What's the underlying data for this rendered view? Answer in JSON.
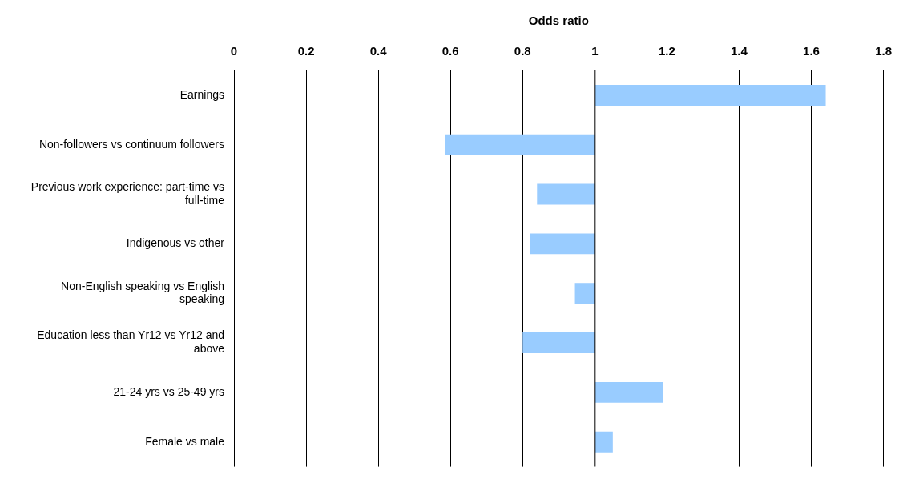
{
  "chart_data": {
    "type": "bar",
    "orientation": "horizontal",
    "xlabel": "Odds ratio",
    "categories": [
      "Earnings",
      "Non-followers vs continuum followers",
      "Previous work experience: part-time vs full-time",
      "Indigenous vs other",
      "Non-English speaking vs English speaking",
      "Education less than Yr12 vs Yr12 and above",
      "21-24 yrs vs 25-49 yrs",
      "Female vs male"
    ],
    "base": [
      1,
      1,
      1,
      1,
      1,
      1,
      1,
      1
    ],
    "values": [
      0.64,
      -0.415,
      -0.16,
      -0.18,
      -0.055,
      -0.2,
      0.19,
      0.05
    ],
    "color": "#99ccff",
    "xlim": [
      0,
      1.8
    ],
    "xticks": [
      0,
      0.2,
      0.4,
      0.6,
      0.8,
      1,
      1.2,
      1.4,
      1.6,
      1.8
    ],
    "ref_lines": [
      {
        "axis": "x",
        "value": 1
      }
    ],
    "grid": "x",
    "legend": false
  }
}
